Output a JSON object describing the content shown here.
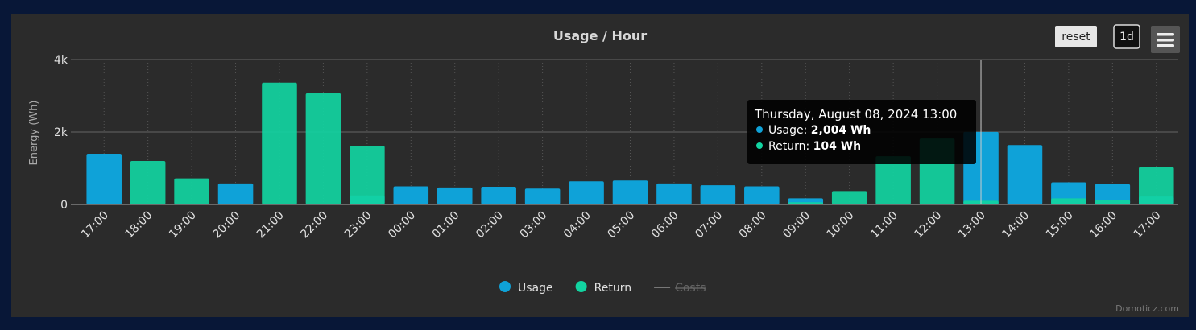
{
  "chart_data": {
    "type": "bar",
    "title": "Usage / Hour",
    "y_label": "Energy (Wh)",
    "categories": [
      "17:00",
      "18:00",
      "19:00",
      "20:00",
      "21:00",
      "22:00",
      "23:00",
      "00:00",
      "01:00",
      "02:00",
      "03:00",
      "04:00",
      "05:00",
      "06:00",
      "07:00",
      "08:00",
      "09:00",
      "10:00",
      "11:00",
      "12:00",
      "13:00",
      "14:00",
      "15:00",
      "16:00",
      "17:00"
    ],
    "series": [
      {
        "name": "Usage",
        "color": "#0fa2d8",
        "values": [
          1400,
          20,
          20,
          580,
          20,
          20,
          250,
          500,
          470,
          490,
          440,
          640,
          660,
          580,
          530,
          500,
          170,
          20,
          20,
          20,
          2004,
          1640,
          610,
          560,
          220
        ]
      },
      {
        "name": "Return",
        "color": "#12d4a1",
        "values": [
          20,
          1200,
          720,
          20,
          3360,
          3070,
          1620,
          20,
          20,
          20,
          20,
          20,
          20,
          20,
          20,
          20,
          60,
          370,
          1330,
          1820,
          104,
          20,
          170,
          120,
          1030
        ]
      }
    ],
    "hidden_series": [
      {
        "name": "Costs",
        "color": "#777777"
      }
    ],
    "ylim": [
      0,
      4000
    ],
    "yticks": [
      0,
      {
        "value": 2000,
        "label": "2k"
      },
      {
        "value": 4000,
        "label": "4k"
      }
    ],
    "grid": true,
    "buttons": [
      "reset",
      "1d"
    ],
    "tooltip": {
      "title": "Thursday, August 08, 2024 13:00",
      "items": [
        {
          "label": "Usage:",
          "value": "2,004 Wh"
        },
        {
          "label": "Return:",
          "value": "104 Wh"
        }
      ]
    },
    "credit": "Domoticz.com"
  }
}
